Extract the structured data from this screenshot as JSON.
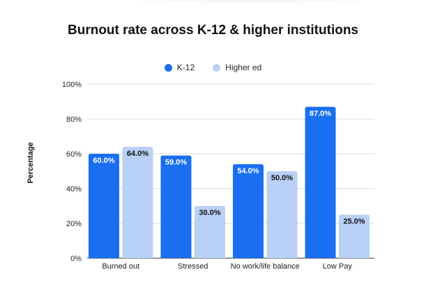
{
  "chart_data": {
    "type": "bar",
    "title": "Burnout rate across K-12 & higher institutions",
    "ylabel": "Percentage",
    "xlabel": "",
    "categories": [
      "Burned out",
      "Stressed",
      "No work/life balance",
      "Low Pay"
    ],
    "series": [
      {
        "name": "K-12",
        "values": [
          60.0,
          59.0,
          54.0,
          87.0
        ],
        "color": "#1a6ff0",
        "label_color": "#ffffff"
      },
      {
        "name": "Higher ed",
        "values": [
          64.0,
          30.0,
          50.0,
          25.0
        ],
        "color": "#b9d0f7",
        "label_color": "#111111"
      }
    ],
    "ylim": [
      0,
      100
    ],
    "yticks": [
      "0%",
      "20%",
      "40%",
      "60%",
      "80%",
      "100%"
    ],
    "data_labels": [
      [
        "60.0%",
        "59.0%",
        "54.0%",
        "87.0%"
      ],
      [
        "64.0%",
        "30.0%",
        "50.0%",
        "25.0%"
      ]
    ],
    "grid": true,
    "legend_position": "top-center"
  }
}
